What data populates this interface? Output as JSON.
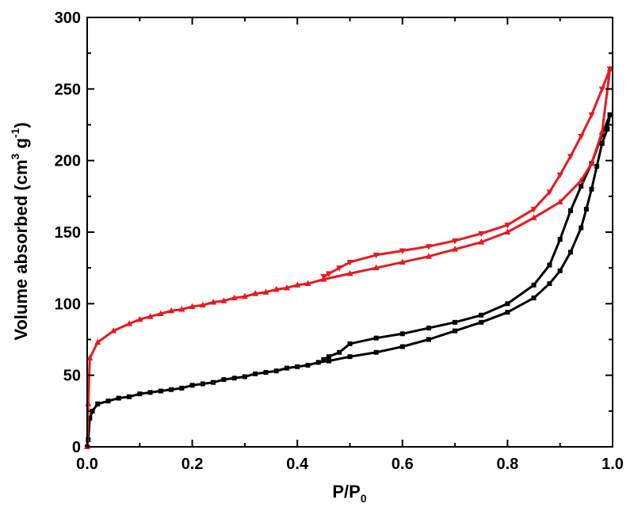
{
  "chart_data": {
    "type": "line",
    "xlabel": {
      "main": "P/P",
      "sub": "0"
    },
    "ylabel": {
      "main": "Volume absorbed (cm",
      "sup1": "3",
      "mid": " g",
      "sup2": "-1",
      "end": ")"
    },
    "xlim": [
      0,
      1.0
    ],
    "ylim": [
      0,
      300
    ],
    "xticks": [
      0.0,
      0.2,
      0.4,
      0.6,
      0.8,
      1.0
    ],
    "xtick_labels": [
      "0.0",
      "0.2",
      "0.4",
      "0.6",
      "0.8",
      "1.0"
    ],
    "yticks": [
      0,
      50,
      100,
      150,
      200,
      250,
      300
    ],
    "ytick_labels": [
      "0",
      "50",
      "100",
      "150",
      "200",
      "250",
      "300"
    ],
    "grid": false,
    "series": [
      {
        "color": "#000000",
        "branch": "adsorption",
        "marker": "square",
        "x": [
          0.0,
          0.002,
          0.005,
          0.01,
          0.02,
          0.04,
          0.06,
          0.08,
          0.1,
          0.12,
          0.14,
          0.16,
          0.18,
          0.2,
          0.22,
          0.24,
          0.26,
          0.28,
          0.3,
          0.32,
          0.34,
          0.36,
          0.38,
          0.4,
          0.42,
          0.44,
          0.46,
          0.5,
          0.55,
          0.6,
          0.65,
          0.7,
          0.75,
          0.8,
          0.85,
          0.88,
          0.9,
          0.92,
          0.94,
          0.95,
          0.96,
          0.97,
          0.98,
          0.99,
          0.995
        ],
        "y": [
          0,
          5,
          20,
          25,
          30,
          32,
          34,
          35,
          37,
          38,
          39,
          40,
          41,
          43,
          44,
          45,
          47,
          48,
          49,
          51,
          52,
          53,
          55,
          56,
          57,
          59,
          60,
          63,
          66,
          70,
          75,
          81,
          87,
          94,
          104,
          114,
          123,
          136,
          153,
          166,
          180,
          196,
          212,
          222,
          232
        ]
      },
      {
        "color": "#000000",
        "branch": "desorption",
        "marker": "square",
        "x": [
          0.995,
          0.98,
          0.96,
          0.94,
          0.92,
          0.9,
          0.88,
          0.85,
          0.8,
          0.75,
          0.7,
          0.65,
          0.6,
          0.55,
          0.5,
          0.48,
          0.46,
          0.45
        ],
        "y": [
          232,
          218,
          198,
          182,
          165,
          145,
          127,
          113,
          100,
          92,
          87,
          83,
          79,
          76,
          72,
          66,
          63,
          61
        ]
      },
      {
        "color": "#e8191f",
        "branch": "adsorption",
        "marker": "triangle-up",
        "x": [
          0.0,
          0.002,
          0.005,
          0.02,
          0.05,
          0.08,
          0.1,
          0.12,
          0.14,
          0.16,
          0.18,
          0.2,
          0.22,
          0.24,
          0.26,
          0.28,
          0.3,
          0.32,
          0.34,
          0.36,
          0.38,
          0.4,
          0.42,
          0.45,
          0.5,
          0.55,
          0.6,
          0.65,
          0.7,
          0.75,
          0.8,
          0.85,
          0.9,
          0.94,
          0.96,
          0.98,
          0.995
        ],
        "y": [
          0,
          30,
          62,
          73,
          81,
          86,
          89,
          91,
          93,
          95,
          96,
          98,
          99,
          101,
          102,
          104,
          105,
          107,
          108,
          110,
          111,
          113,
          114,
          117,
          121,
          125,
          129,
          133,
          138,
          143,
          150,
          160,
          171,
          186,
          198,
          220,
          264
        ]
      },
      {
        "color": "#e8191f",
        "branch": "desorption",
        "marker": "triangle-down",
        "x": [
          0.995,
          0.98,
          0.96,
          0.94,
          0.92,
          0.9,
          0.88,
          0.85,
          0.8,
          0.75,
          0.7,
          0.65,
          0.6,
          0.55,
          0.5,
          0.48,
          0.46,
          0.45
        ],
        "y": [
          264,
          250,
          232,
          217,
          203,
          190,
          178,
          166,
          155,
          149,
          144,
          140,
          137,
          134,
          129,
          125,
          121,
          119
        ]
      }
    ]
  }
}
